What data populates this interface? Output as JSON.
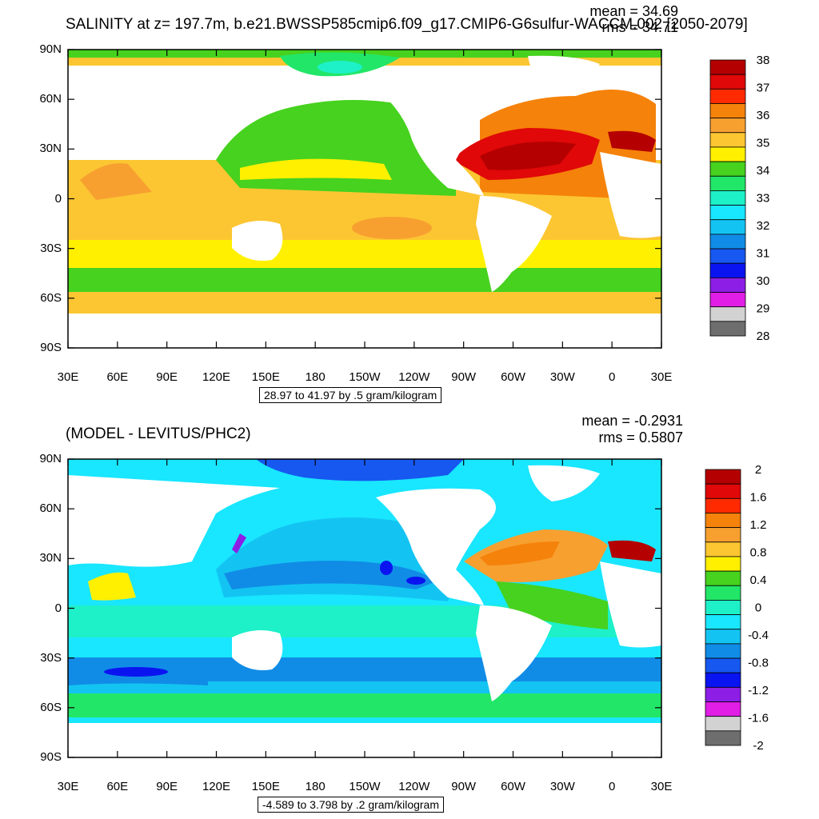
{
  "panel1": {
    "title": "SALINITY at z= 197.7m, b.e21.BWSSP585cmip6.f09_g17.CMIP6-G6sulfur-WACCM.002 [2050-2079]",
    "mean": "mean = 34.69",
    "rms": "rms = 34.71",
    "contour_info": "28.97 to 41.97 by .5 gram/kilogram",
    "colorbar": {
      "labels": [
        "38",
        "37",
        "36",
        "35",
        "34",
        "33",
        "32",
        "31",
        "30",
        "29",
        "28"
      ],
      "colors": [
        "#b40000",
        "#e00808",
        "#ff2a00",
        "#f5820a",
        "#f7a030",
        "#fcc632",
        "#fff000",
        "#46d21e",
        "#22e668",
        "#1ef0c8",
        "#19e6ff",
        "#13c4f2",
        "#118ce6",
        "#1658f0",
        "#0a14f0",
        "#8c1ee6",
        "#e01ee6",
        "#d2d2d2",
        "#6e6e6e"
      ]
    }
  },
  "panel2": {
    "title": "(MODEL - LEVITUS/PHC2)",
    "mean": "mean = -0.2931",
    "rms": "rms = 0.5807",
    "contour_info": "-4.589 to 3.798 by .2 gram/kilogram",
    "colorbar": {
      "labels": [
        "2",
        "1.6",
        "1.2",
        "0.8",
        "0.4",
        "0",
        "-0.4",
        "-0.8",
        "-1.2",
        "-1.6",
        "-2"
      ],
      "colors": [
        "#b40000",
        "#e00808",
        "#ff2a00",
        "#f5820a",
        "#f7a030",
        "#fcc632",
        "#fff000",
        "#46d21e",
        "#22e668",
        "#1ef0c8",
        "#19e6ff",
        "#13c4f2",
        "#118ce6",
        "#1658f0",
        "#0a14f0",
        "#8c1ee6",
        "#e01ee6",
        "#d2d2d2",
        "#6e6e6e"
      ]
    }
  },
  "axes": {
    "lat_labels": [
      "90N",
      "60N",
      "30N",
      "0",
      "30S",
      "60S",
      "90S"
    ],
    "lon_labels": [
      "30E",
      "60E",
      "90E",
      "120E",
      "150E",
      "180",
      "150W",
      "120W",
      "90W",
      "60W",
      "30W",
      "0",
      "30E"
    ]
  }
}
